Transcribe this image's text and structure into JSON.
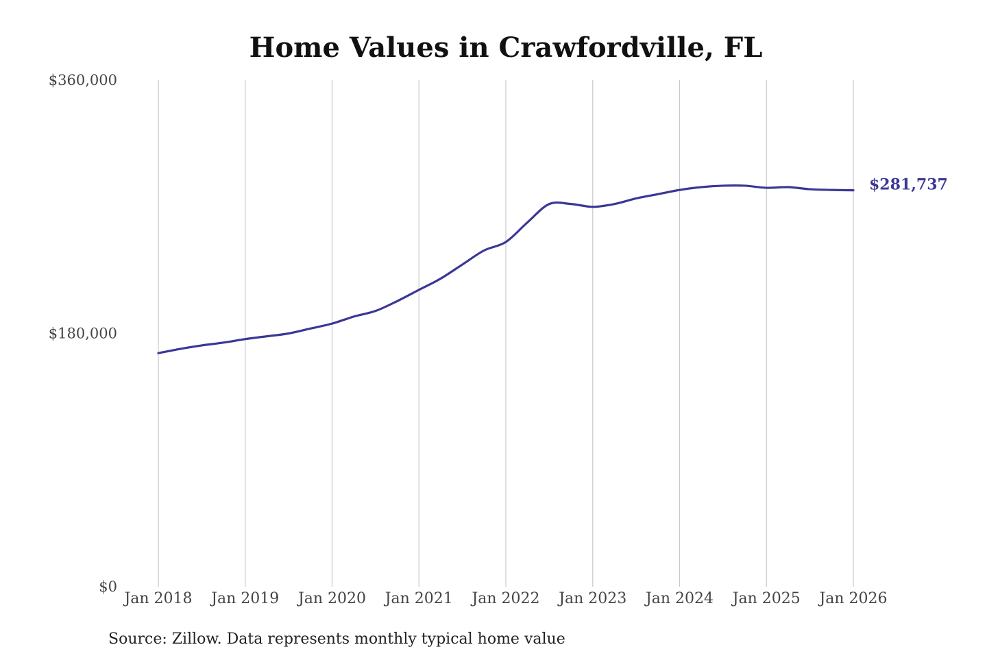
{
  "chart_data": {
    "type": "line",
    "title": "Home Values in Crawfordville, FL",
    "xlabel": "",
    "ylabel": "",
    "x_ticks": [
      "Jan 2018",
      "Jan 2019",
      "Jan 2020",
      "Jan 2021",
      "Jan 2022",
      "Jan 2023",
      "Jan 2024",
      "Jan 2025",
      "Jan 2026"
    ],
    "y_ticks": [
      "$0",
      "$180,000",
      "$360,000"
    ],
    "y_tick_values": [
      0,
      180000,
      360000
    ],
    "ylim": [
      0,
      360000
    ],
    "x_range": [
      "2018-01",
      "2026-01"
    ],
    "grid": "vertical",
    "series": [
      {
        "color": "#3b3796",
        "x": [
          "2018-01",
          "2018-04",
          "2018-07",
          "2018-10",
          "2019-01",
          "2019-04",
          "2019-07",
          "2019-10",
          "2020-01",
          "2020-04",
          "2020-07",
          "2020-10",
          "2021-01",
          "2021-04",
          "2021-07",
          "2021-10",
          "2022-01",
          "2022-04",
          "2022-07",
          "2022-10",
          "2023-01",
          "2023-04",
          "2023-07",
          "2023-10",
          "2024-01",
          "2024-04",
          "2024-07",
          "2024-10",
          "2025-01",
          "2025-04",
          "2025-07",
          "2025-10",
          "2026-01"
        ],
        "values": [
          166000,
          169000,
          171500,
          173500,
          176000,
          178000,
          180000,
          183500,
          187000,
          192000,
          196000,
          203000,
          211000,
          219000,
          229000,
          239000,
          245000,
          259000,
          272000,
          272000,
          270000,
          272000,
          276000,
          279000,
          282000,
          284000,
          285000,
          285000,
          283500,
          284000,
          282500,
          282000,
          281737
        ]
      }
    ],
    "end_label": "$281,737",
    "annotations": [
      "Source: Zillow. Data represents monthly typical home value"
    ]
  }
}
